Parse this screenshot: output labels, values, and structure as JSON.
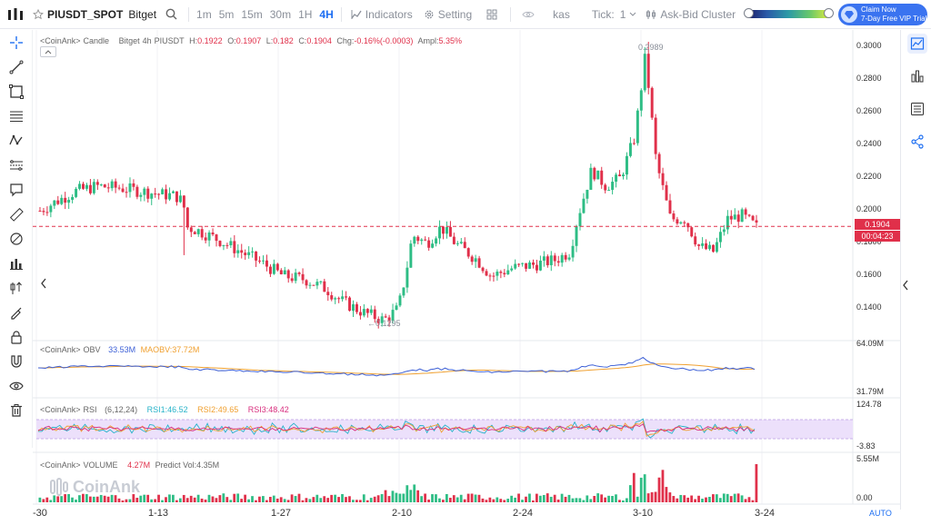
{
  "topbar": {
    "symbol": "PIUSDT_SPOT",
    "exchange": "Bitget",
    "timeframes": [
      "1m",
      "5m",
      "15m",
      "30m",
      "1H",
      "4H"
    ],
    "active_timeframe": "4H",
    "indicators_label": "Indicators",
    "setting_label": "Setting",
    "hidden_input_value": "kas",
    "tick_label": "Tick:",
    "tick_value": "1",
    "cluster_label": "Ask-Bid Cluster",
    "claim_line1": "Claim Now",
    "claim_line2": "7-Day Free VIP Trial"
  },
  "candle_legend": {
    "source": "<CoinAnk>",
    "name": "Candle",
    "exchange": "Bitget",
    "interval": "4h",
    "symbol": "PIUSDT",
    "high_label": "H:",
    "high": "0.1922",
    "open_label": "O:",
    "open": "0.1907",
    "low_label": "L:",
    "low": "0.182",
    "close_label": "C:",
    "close": "0.1904",
    "chg_label": "Chg:",
    "chg": "-0.16%(-0.0003)",
    "ampl_label": "Ampl:",
    "ampl": "5.35%"
  },
  "obv_legend": {
    "source": "<CoinAnk>",
    "name": "OBV",
    "value": "33.53M",
    "ma_label": "MAOBV:",
    "ma_value": "37.72M"
  },
  "rsi_legend": {
    "source": "<CoinAnk>",
    "name": "RSI",
    "params": "(6,12,24)",
    "rsi1_label": "RSI1:",
    "rsi1": "46.52",
    "rsi2_label": "RSI2:",
    "rsi2": "49.65",
    "rsi3_label": "RSI3:",
    "rsi3": "48.42"
  },
  "volume_legend": {
    "source": "<CoinAnk>",
    "name": "VOLUME",
    "value": "4.27M",
    "predict_label": "Predict Vol:",
    "predict": "4.35M"
  },
  "price_axis": [
    "0.3000",
    "0.2800",
    "0.2600",
    "0.2400",
    "0.2200",
    "0.2000",
    "0.1800",
    "0.1600",
    "0.1400"
  ],
  "price_tag": {
    "price": "0.1904",
    "countdown": "00:04:23"
  },
  "annotations": {
    "high": "0.2989",
    "low": "0.1295"
  },
  "obv_axis": {
    "top": "64.09M",
    "bottom": "31.79M"
  },
  "rsi_axis": {
    "top": "124.78",
    "bottom": "-3.83"
  },
  "volume_axis": {
    "top": "5.55M",
    "bottom": "0.00"
  },
  "x_axis": [
    "-30",
    "1-13",
    "1-27",
    "2-10",
    "2-24",
    "3-10",
    "3-24"
  ],
  "auto_label": "AUTO",
  "watermark": "CoinAnk",
  "colors": {
    "up": "#2ebd85",
    "down": "#e0304a",
    "accent": "#1e6ff2",
    "obv": "#3c5fd6",
    "maobv": "#f0a030",
    "rsi1": "#27b3c9",
    "rsi2": "#f0a030",
    "rsi3": "#d82e7e"
  },
  "chart_data": {
    "type": "candlestick",
    "x_ticks": [
      "-30",
      "1-13",
      "1-27",
      "2-10",
      "2-24",
      "3-10",
      "3-24"
    ],
    "price_range": [
      0.125,
      0.305
    ],
    "close_path": [
      [
        0,
        0.2
      ],
      [
        0.02,
        0.205
      ],
      [
        0.05,
        0.212
      ],
      [
        0.08,
        0.215
      ],
      [
        0.11,
        0.214
      ],
      [
        0.14,
        0.212
      ],
      [
        0.17,
        0.21
      ],
      [
        0.19,
        0.209
      ],
      [
        0.2,
        0.205
      ],
      [
        0.205,
        0.19
      ],
      [
        0.22,
        0.188
      ],
      [
        0.25,
        0.182
      ],
      [
        0.28,
        0.175
      ],
      [
        0.31,
        0.168
      ],
      [
        0.34,
        0.16
      ],
      [
        0.37,
        0.158
      ],
      [
        0.4,
        0.152
      ],
      [
        0.42,
        0.145
      ],
      [
        0.45,
        0.138
      ],
      [
        0.48,
        0.133
      ],
      [
        0.5,
        0.14
      ],
      [
        0.51,
        0.16
      ],
      [
        0.52,
        0.185
      ],
      [
        0.54,
        0.18
      ],
      [
        0.56,
        0.19
      ],
      [
        0.58,
        0.18
      ],
      [
        0.61,
        0.17
      ],
      [
        0.63,
        0.16
      ],
      [
        0.66,
        0.165
      ],
      [
        0.69,
        0.167
      ],
      [
        0.72,
        0.17
      ],
      [
        0.74,
        0.175
      ],
      [
        0.75,
        0.195
      ],
      [
        0.77,
        0.225
      ],
      [
        0.79,
        0.215
      ],
      [
        0.81,
        0.22
      ],
      [
        0.83,
        0.245
      ],
      [
        0.845,
        0.295
      ],
      [
        0.86,
        0.23
      ],
      [
        0.88,
        0.195
      ],
      [
        0.9,
        0.195
      ],
      [
        0.92,
        0.178
      ],
      [
        0.94,
        0.175
      ],
      [
        0.96,
        0.195
      ],
      [
        0.98,
        0.197
      ],
      [
        1.0,
        0.19
      ]
    ]
  }
}
